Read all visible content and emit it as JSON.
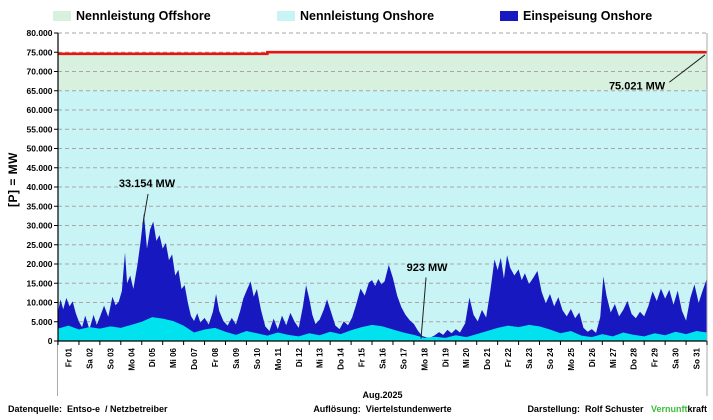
{
  "legend": [
    {
      "label": "Nennleistung Offshore",
      "color": "#d8f1df"
    },
    {
      "label": "Nennleistung Onshore",
      "color": "#c9f4f6"
    },
    {
      "label": "Einspeisung Onshore",
      "color": "#1818c0"
    }
  ],
  "y_axis": {
    "title": "[P] = MW",
    "min": 0,
    "max": 80000,
    "step": 5000
  },
  "x_axis": {
    "month_label": "Aug.2025",
    "day_labels": [
      "Fr 01",
      "Sa 02",
      "So 03",
      "Mo 04",
      "Di 05",
      "Mi 06",
      "Do 07",
      "Fr 08",
      "Sa 09",
      "So 10",
      "Mo 11",
      "Di 12",
      "Mi 13",
      "Do 14",
      "Fr 15",
      "Sa 16",
      "So 17",
      "Mo 18",
      "Di 19",
      "Mi 20",
      "Do 21",
      "Fr 22",
      "Sa 23",
      "So 24",
      "Mo 25",
      "Di 26",
      "Mi 27",
      "Do 28",
      "Fr 29",
      "Sa 30",
      "So 31"
    ]
  },
  "footer": {
    "left": "Datenquelle:  Entso-e  / Netzbetreiber",
    "center": "Auflösung:  Viertelstundenwerte",
    "right_prefix": "Darstellung:  Rolf Schuster",
    "brand_green": "Vernunft",
    "brand_black": "kraft",
    "brand_color": "#3cbe3c"
  },
  "annotations": [
    {
      "text": "33.154 MW",
      "label_day": 4.25,
      "label_mw": 41000,
      "line": [
        [
          4.3,
          38200
        ],
        [
          4.05,
          30200
        ]
      ]
    },
    {
      "text": "923 MW",
      "label_day": 17.63,
      "label_mw": 19200,
      "line": [
        [
          17.58,
          16500
        ],
        [
          17.34,
          600
        ]
      ]
    },
    {
      "text": "75.021 MW",
      "label_day": 27.66,
      "label_mw": 66300,
      "line": [
        [
          29.2,
          67200
        ],
        [
          30.9,
          74300
        ]
      ]
    }
  ],
  "chart_data": {
    "type": "area",
    "title": "",
    "x_unit": "Tag im Aug.2025 (Viertelstundenwerte)",
    "y_unit": "MW",
    "ylim": [
      0,
      80000
    ],
    "grid": "horizontal-dashed",
    "grid_color": "#a6a6a6",
    "axis_color": "#000000",
    "capacity_bands": [
      {
        "name": "Nennleistung Onshore",
        "from_mw": 0,
        "to_mw": 65000,
        "color": "#c9f4f6"
      },
      {
        "name": "Nennleistung Offshore",
        "from_mw": 65000,
        "to_mw": "capacity_total_line",
        "color": "#d8f1df"
      }
    ],
    "capacity_total_line": {
      "color": "#e81410",
      "end_value_mw": 75021,
      "points": [
        [
          0,
          74600
        ],
        [
          10,
          74600
        ],
        [
          10,
          75021
        ],
        [
          31,
          75021
        ]
      ]
    },
    "series": [
      {
        "name": "Einspeisung Onshore",
        "color": "#1818c0",
        "draw": "area-from-zero",
        "max_mw": 33154,
        "min_mw": 923,
        "points": [
          [
            0,
            7500
          ],
          [
            0.12,
            10800
          ],
          [
            0.25,
            8200
          ],
          [
            0.4,
            11200
          ],
          [
            0.55,
            9000
          ],
          [
            0.7,
            10300
          ],
          [
            0.85,
            7200
          ],
          [
            1,
            5000
          ],
          [
            1.15,
            3600
          ],
          [
            1.3,
            6600
          ],
          [
            1.5,
            3100
          ],
          [
            1.7,
            6800
          ],
          [
            1.85,
            4200
          ],
          [
            2,
            6200
          ],
          [
            2.2,
            9200
          ],
          [
            2.4,
            6300
          ],
          [
            2.6,
            11500
          ],
          [
            2.75,
            9300
          ],
          [
            2.9,
            10200
          ],
          [
            3.05,
            13000
          ],
          [
            3.2,
            23000
          ],
          [
            3.3,
            15000
          ],
          [
            3.45,
            17000
          ],
          [
            3.6,
            13500
          ],
          [
            3.8,
            20000
          ],
          [
            3.95,
            26000
          ],
          [
            4.1,
            33154
          ],
          [
            4.25,
            24000
          ],
          [
            4.4,
            29000
          ],
          [
            4.55,
            31000
          ],
          [
            4.7,
            26000
          ],
          [
            4.85,
            27500
          ],
          [
            5,
            24000
          ],
          [
            5.15,
            25500
          ],
          [
            5.3,
            21000
          ],
          [
            5.45,
            22500
          ],
          [
            5.6,
            17000
          ],
          [
            5.75,
            18500
          ],
          [
            5.9,
            13500
          ],
          [
            6.05,
            14500
          ],
          [
            6.2,
            10000
          ],
          [
            6.35,
            6500
          ],
          [
            6.5,
            5200
          ],
          [
            6.65,
            7200
          ],
          [
            6.8,
            4800
          ],
          [
            7,
            6000
          ],
          [
            7.2,
            4300
          ],
          [
            7.4,
            7600
          ],
          [
            7.55,
            12200
          ],
          [
            7.7,
            7800
          ],
          [
            7.9,
            5200
          ],
          [
            8.1,
            4000
          ],
          [
            8.3,
            6000
          ],
          [
            8.5,
            4300
          ],
          [
            8.7,
            7800
          ],
          [
            8.85,
            11000
          ],
          [
            9,
            13000
          ],
          [
            9.2,
            15500
          ],
          [
            9.35,
            11500
          ],
          [
            9.5,
            13500
          ],
          [
            9.7,
            8000
          ],
          [
            9.9,
            3800
          ],
          [
            10.1,
            2600
          ],
          [
            10.3,
            5800
          ],
          [
            10.5,
            3100
          ],
          [
            10.7,
            6600
          ],
          [
            10.9,
            4100
          ],
          [
            11.1,
            7300
          ],
          [
            11.3,
            5000
          ],
          [
            11.5,
            3400
          ],
          [
            11.7,
            9000
          ],
          [
            11.85,
            14500
          ],
          [
            12,
            11000
          ],
          [
            12.15,
            6800
          ],
          [
            12.3,
            4400
          ],
          [
            12.5,
            5600
          ],
          [
            12.7,
            8200
          ],
          [
            12.85,
            10800
          ],
          [
            13.05,
            7400
          ],
          [
            13.25,
            4000
          ],
          [
            13.45,
            3100
          ],
          [
            13.65,
            5100
          ],
          [
            13.85,
            4100
          ],
          [
            14.05,
            6100
          ],
          [
            14.25,
            9600
          ],
          [
            14.45,
            13600
          ],
          [
            14.65,
            11800
          ],
          [
            14.85,
            15200
          ],
          [
            15,
            15800
          ],
          [
            15.15,
            14300
          ],
          [
            15.3,
            16100
          ],
          [
            15.45,
            14700
          ],
          [
            15.6,
            15500
          ],
          [
            15.8,
            19800
          ],
          [
            16,
            16300
          ],
          [
            16.2,
            11800
          ],
          [
            16.4,
            8800
          ],
          [
            16.6,
            6800
          ],
          [
            16.8,
            5400
          ],
          [
            17,
            4400
          ],
          [
            17.2,
            2600
          ],
          [
            17.4,
            1300
          ],
          [
            17.6,
            950
          ],
          [
            17.8,
            923
          ],
          [
            18,
            1500
          ],
          [
            18.2,
            2300
          ],
          [
            18.4,
            1600
          ],
          [
            18.6,
            2900
          ],
          [
            18.8,
            2000
          ],
          [
            19,
            3100
          ],
          [
            19.2,
            2200
          ],
          [
            19.45,
            4600
          ],
          [
            19.65,
            11300
          ],
          [
            19.85,
            6800
          ],
          [
            20.05,
            5100
          ],
          [
            20.25,
            8100
          ],
          [
            20.45,
            6100
          ],
          [
            20.65,
            13000
          ],
          [
            20.85,
            21200
          ],
          [
            21,
            18400
          ],
          [
            21.15,
            21600
          ],
          [
            21.3,
            16200
          ],
          [
            21.45,
            22300
          ],
          [
            21.6,
            19000
          ],
          [
            21.8,
            17000
          ],
          [
            22,
            18600
          ],
          [
            22.15,
            15800
          ],
          [
            22.3,
            17600
          ],
          [
            22.5,
            14800
          ],
          [
            22.7,
            16400
          ],
          [
            22.9,
            18200
          ],
          [
            23.1,
            12800
          ],
          [
            23.3,
            9800
          ],
          [
            23.5,
            12200
          ],
          [
            23.7,
            9000
          ],
          [
            23.9,
            11400
          ],
          [
            24.1,
            8000
          ],
          [
            24.3,
            6400
          ],
          [
            24.5,
            8300
          ],
          [
            24.7,
            5900
          ],
          [
            24.9,
            7400
          ],
          [
            25.1,
            3400
          ],
          [
            25.3,
            2400
          ],
          [
            25.5,
            3100
          ],
          [
            25.7,
            2100
          ],
          [
            25.9,
            6200
          ],
          [
            26.05,
            16800
          ],
          [
            26.2,
            11800
          ],
          [
            26.4,
            7400
          ],
          [
            26.6,
            9600
          ],
          [
            26.8,
            6400
          ],
          [
            27,
            8100
          ],
          [
            27.2,
            10400
          ],
          [
            27.4,
            7000
          ],
          [
            27.6,
            5900
          ],
          [
            27.8,
            7600
          ],
          [
            28,
            6400
          ],
          [
            28.2,
            9100
          ],
          [
            28.4,
            12900
          ],
          [
            28.6,
            10400
          ],
          [
            28.8,
            13600
          ],
          [
            29,
            11000
          ],
          [
            29.2,
            13300
          ],
          [
            29.4,
            9400
          ],
          [
            29.6,
            13100
          ],
          [
            29.8,
            7900
          ],
          [
            30,
            5300
          ],
          [
            30.2,
            11100
          ],
          [
            30.4,
            14700
          ],
          [
            30.6,
            9900
          ],
          [
            30.8,
            13200
          ],
          [
            31,
            16300
          ]
        ]
      },
      {
        "name": "Einspeisung Offshore (ohne Legendeneintrag, helltürkises Band an der Basislinie)",
        "color": "#00e2ee",
        "draw": "area-from-zero-overlay",
        "points": [
          [
            0,
            3200
          ],
          [
            0.5,
            4000
          ],
          [
            1,
            3000
          ],
          [
            1.5,
            3600
          ],
          [
            2,
            3200
          ],
          [
            2.5,
            3800
          ],
          [
            3,
            3400
          ],
          [
            3.5,
            4200
          ],
          [
            4,
            5000
          ],
          [
            4.5,
            6200
          ],
          [
            5,
            5800
          ],
          [
            5.5,
            5200
          ],
          [
            6,
            4000
          ],
          [
            6.5,
            2200
          ],
          [
            7,
            3000
          ],
          [
            7.5,
            3400
          ],
          [
            8,
            2400
          ],
          [
            8.5,
            1600
          ],
          [
            9,
            2600
          ],
          [
            9.5,
            2000
          ],
          [
            10,
            1400
          ],
          [
            10.5,
            2200
          ],
          [
            11,
            1600
          ],
          [
            11.5,
            1200
          ],
          [
            12,
            2000
          ],
          [
            12.5,
            1500
          ],
          [
            13,
            2400
          ],
          [
            13.5,
            1800
          ],
          [
            14,
            2800
          ],
          [
            14.5,
            3600
          ],
          [
            15,
            4200
          ],
          [
            15.5,
            3800
          ],
          [
            16,
            3000
          ],
          [
            16.5,
            2200
          ],
          [
            17,
            1600
          ],
          [
            17.5,
            800
          ],
          [
            18,
            1100
          ],
          [
            18.5,
            800
          ],
          [
            19,
            1500
          ],
          [
            19.5,
            1000
          ],
          [
            20,
            1800
          ],
          [
            20.5,
            2600
          ],
          [
            21,
            3400
          ],
          [
            21.5,
            4000
          ],
          [
            22,
            3600
          ],
          [
            22.5,
            4200
          ],
          [
            23,
            3800
          ],
          [
            23.5,
            3000
          ],
          [
            24,
            2000
          ],
          [
            24.5,
            2600
          ],
          [
            25,
            1400
          ],
          [
            25.5,
            1000
          ],
          [
            26,
            1800
          ],
          [
            26.5,
            1200
          ],
          [
            27,
            2200
          ],
          [
            27.5,
            1600
          ],
          [
            28,
            1200
          ],
          [
            28.5,
            2000
          ],
          [
            29,
            1500
          ],
          [
            29.5,
            2400
          ],
          [
            30,
            1800
          ],
          [
            30.5,
            2600
          ],
          [
            31,
            2200
          ]
        ]
      }
    ]
  }
}
